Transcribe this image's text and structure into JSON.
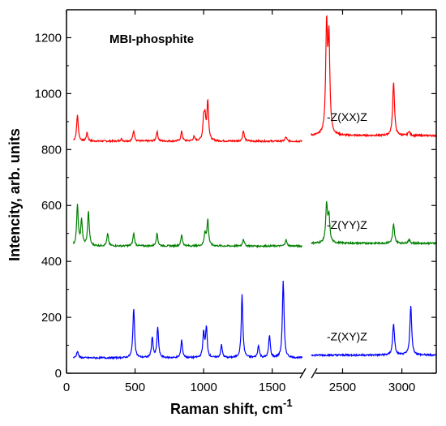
{
  "chart_data": {
    "type": "line",
    "title": "MBI-phosphite",
    "xlabel": "Raman shift, cm",
    "xlabel_sup": "-1",
    "ylabel": "Intencity, arb. units",
    "ylim": [
      0,
      1300
    ],
    "yticks": [
      0,
      200,
      400,
      600,
      800,
      1000,
      1200
    ],
    "x_left_range": [
      0,
      1750
    ],
    "x_left_ticks": [
      0,
      500,
      1000,
      1500
    ],
    "x_right_range": [
      2230,
      3290
    ],
    "x_right_ticks": [
      2500,
      3000
    ],
    "grid": false,
    "legend": "none",
    "series": [
      {
        "name": "-Z(XX)Z",
        "color": "#ff0000",
        "baseline_left": 830,
        "baseline_right": 850,
        "peaks_left": [
          [
            80,
            925
          ],
          [
            150,
            860
          ],
          [
            400,
            838
          ],
          [
            490,
            868
          ],
          [
            660,
            865
          ],
          [
            840,
            865
          ],
          [
            930,
            845
          ],
          [
            1000,
            900
          ],
          [
            1010,
            905
          ],
          [
            1030,
            972
          ],
          [
            1290,
            868
          ],
          [
            1600,
            845
          ]
        ],
        "peaks_right": [
          [
            2365,
            1228
          ],
          [
            2385,
            1178
          ],
          [
            2930,
            1043
          ],
          [
            3060,
            865
          ]
        ]
      },
      {
        "name": "-Z(YY)Z",
        "color": "#008000",
        "baseline_left": 455,
        "baseline_right": 465,
        "peaks_left": [
          [
            80,
            600
          ],
          [
            110,
            545
          ],
          [
            160,
            578
          ],
          [
            300,
            498
          ],
          [
            490,
            500
          ],
          [
            660,
            500
          ],
          [
            840,
            495
          ],
          [
            1010,
            502
          ],
          [
            1030,
            548
          ],
          [
            1290,
            480
          ],
          [
            1600,
            478
          ]
        ],
        "peaks_right": [
          [
            2365,
            600
          ],
          [
            2385,
            555
          ],
          [
            2930,
            532
          ],
          [
            3060,
            478
          ]
        ]
      },
      {
        "name": "-Z(XY)Z",
        "color": "#0000ff",
        "baseline_left": 55,
        "baseline_right": 65,
        "peaks_left": [
          [
            80,
            80
          ],
          [
            160,
            55
          ],
          [
            490,
            232
          ],
          [
            625,
            128
          ],
          [
            665,
            165
          ],
          [
            840,
            118
          ],
          [
            1000,
            145
          ],
          [
            1020,
            160
          ],
          [
            1130,
            100
          ],
          [
            1280,
            280
          ],
          [
            1400,
            100
          ],
          [
            1480,
            135
          ],
          [
            1580,
            330
          ]
        ],
        "peaks_right": [
          [
            2930,
            178
          ],
          [
            3075,
            240
          ]
        ]
      }
    ]
  }
}
